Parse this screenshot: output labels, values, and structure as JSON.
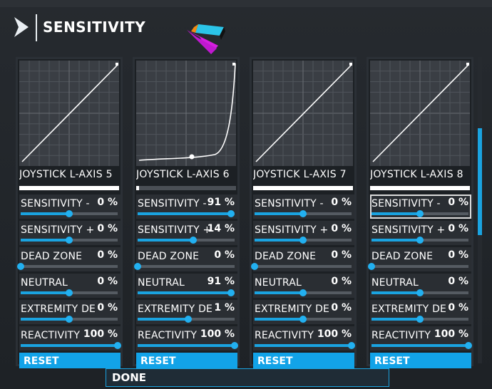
{
  "header": {
    "title": "SENSITIVITY"
  },
  "footer": {
    "done_label": "DONE"
  },
  "panels": [
    {
      "axis": "JOYSTICK L-AXIS 5",
      "curve": "linear",
      "axis_bar": "full",
      "rows": [
        {
          "label": "SENSITIVITY -",
          "value": "0 %",
          "pos": 0.5
        },
        {
          "label": "SENSITIVITY +",
          "value": "0 %",
          "pos": 0.5
        },
        {
          "label": "DEAD ZONE",
          "value": "0 %",
          "pos": 0.0
        },
        {
          "label": "NEUTRAL",
          "value": "0 %",
          "pos": 0.5
        },
        {
          "label": "EXTREMITY DEAD ZONE",
          "value": "0 %",
          "pos": 0.5
        },
        {
          "label": "REACTIVITY",
          "value": "100 %",
          "pos": 1.0
        }
      ],
      "reset": "RESET"
    },
    {
      "axis": "JOYSTICK L-AXIS 6",
      "curve": "exponential",
      "axis_bar": "dim",
      "rows": [
        {
          "label": "SENSITIVITY -",
          "value": "91 %",
          "pos": 0.96
        },
        {
          "label": "SENSITIVITY +",
          "value": "14 %",
          "pos": 0.57
        },
        {
          "label": "DEAD ZONE",
          "value": "0 %",
          "pos": 0.0
        },
        {
          "label": "NEUTRAL",
          "value": "91 %",
          "pos": 0.96
        },
        {
          "label": "EXTREMITY DEAD ZONE",
          "value": "1 %",
          "pos": 0.52
        },
        {
          "label": "REACTIVITY",
          "value": "100 %",
          "pos": 1.0
        }
      ],
      "reset": "RESET"
    },
    {
      "axis": "JOYSTICK L-AXIS 7",
      "curve": "linear",
      "axis_bar": "full",
      "rows": [
        {
          "label": "SENSITIVITY -",
          "value": "0 %",
          "pos": 0.5
        },
        {
          "label": "SENSITIVITY +",
          "value": "0 %",
          "pos": 0.5
        },
        {
          "label": "DEAD ZONE",
          "value": "0 %",
          "pos": 0.0
        },
        {
          "label": "NEUTRAL",
          "value": "0 %",
          "pos": 0.5
        },
        {
          "label": "EXTREMITY DEAD ZONE",
          "value": "0 %",
          "pos": 0.5
        },
        {
          "label": "REACTIVITY",
          "value": "100 %",
          "pos": 1.0
        }
      ],
      "reset": "RESET"
    },
    {
      "axis": "JOYSTICK L-AXIS 8",
      "curve": "linear",
      "axis_bar": "full",
      "rows": [
        {
          "label": "SENSITIVITY -",
          "value": "0 %",
          "pos": 0.5,
          "hover": true
        },
        {
          "label": "SENSITIVITY +",
          "value": "0 %",
          "pos": 0.5
        },
        {
          "label": "DEAD ZONE",
          "value": "0 %",
          "pos": 0.0
        },
        {
          "label": "NEUTRAL",
          "value": "0 %",
          "pos": 0.5
        },
        {
          "label": "EXTREMITY DEAD ZONE",
          "value": "0 %",
          "pos": 0.5
        },
        {
          "label": "REACTIVITY",
          "value": "100 %",
          "pos": 1.0
        }
      ],
      "reset": "RESET"
    }
  ],
  "colors": {
    "accent": "#12a3e8",
    "panel_bg": "#1c2024",
    "graph_bg": "#3a3e44"
  },
  "icons": {
    "title": "chevron-right-icon",
    "cursor": "mouse-cursor-icon"
  }
}
